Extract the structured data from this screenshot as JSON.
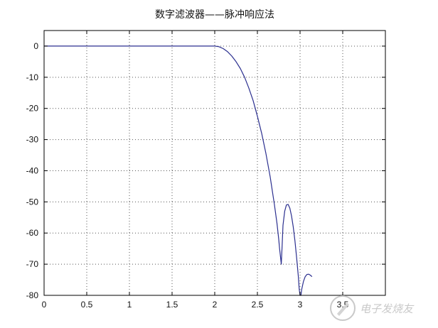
{
  "chart_data": {
    "type": "line",
    "title": "数字滤波器——脉冲响应法",
    "xlabel": "",
    "ylabel": "",
    "xlim": [
      0,
      4
    ],
    "ylim": [
      -80,
      5
    ],
    "grid": true,
    "x_ticks": [
      0,
      0.5,
      1,
      1.5,
      2,
      2.5,
      3,
      3.5,
      4
    ],
    "x_tick_labels": [
      "0",
      "0.5",
      "1",
      "1.5",
      "2",
      "2.5",
      "3",
      "3.5",
      ""
    ],
    "y_ticks": [
      0,
      -10,
      -20,
      -30,
      -40,
      -50,
      -60,
      -70,
      -80
    ],
    "y_tick_labels": [
      "0",
      "-10",
      "-20",
      "-30",
      "-40",
      "-50",
      "-60",
      "-70",
      "-80"
    ],
    "series": [
      {
        "name": "",
        "color": "#2b2f8f",
        "x": [
          0,
          0.5,
          1,
          1.5,
          2.0,
          2.05,
          2.1,
          2.15,
          2.2,
          2.25,
          2.3,
          2.35,
          2.4,
          2.45,
          2.5,
          2.55,
          2.6,
          2.65,
          2.7,
          2.73,
          2.75,
          2.76,
          2.77,
          2.78,
          2.79,
          2.8,
          2.82,
          2.84,
          2.86,
          2.88,
          2.9,
          2.92,
          2.94,
          2.96,
          2.98,
          2.99,
          3.0,
          3.01,
          3.02,
          3.04,
          3.06,
          3.08,
          3.1,
          3.12,
          3.14
        ],
        "values": [
          0,
          0,
          0,
          0,
          0,
          -0.2,
          -0.8,
          -1.8,
          -3.2,
          -5.0,
          -7.2,
          -10.0,
          -13.5,
          -17.5,
          -22.5,
          -28.0,
          -34.5,
          -42.0,
          -51.0,
          -57.0,
          -62.0,
          -65.0,
          -67.5,
          -70.0,
          -64.0,
          -57.5,
          -53.0,
          -51.0,
          -50.8,
          -52.0,
          -54.5,
          -58.0,
          -62.5,
          -68.0,
          -74.0,
          -78.0,
          -80.0,
          -80.0,
          -78.0,
          -75.5,
          -74.0,
          -73.3,
          -73.2,
          -73.5,
          -74.0
        ]
      }
    ]
  },
  "watermark": {
    "text": "电子发烧友",
    "icon": "pen-writing-icon"
  }
}
